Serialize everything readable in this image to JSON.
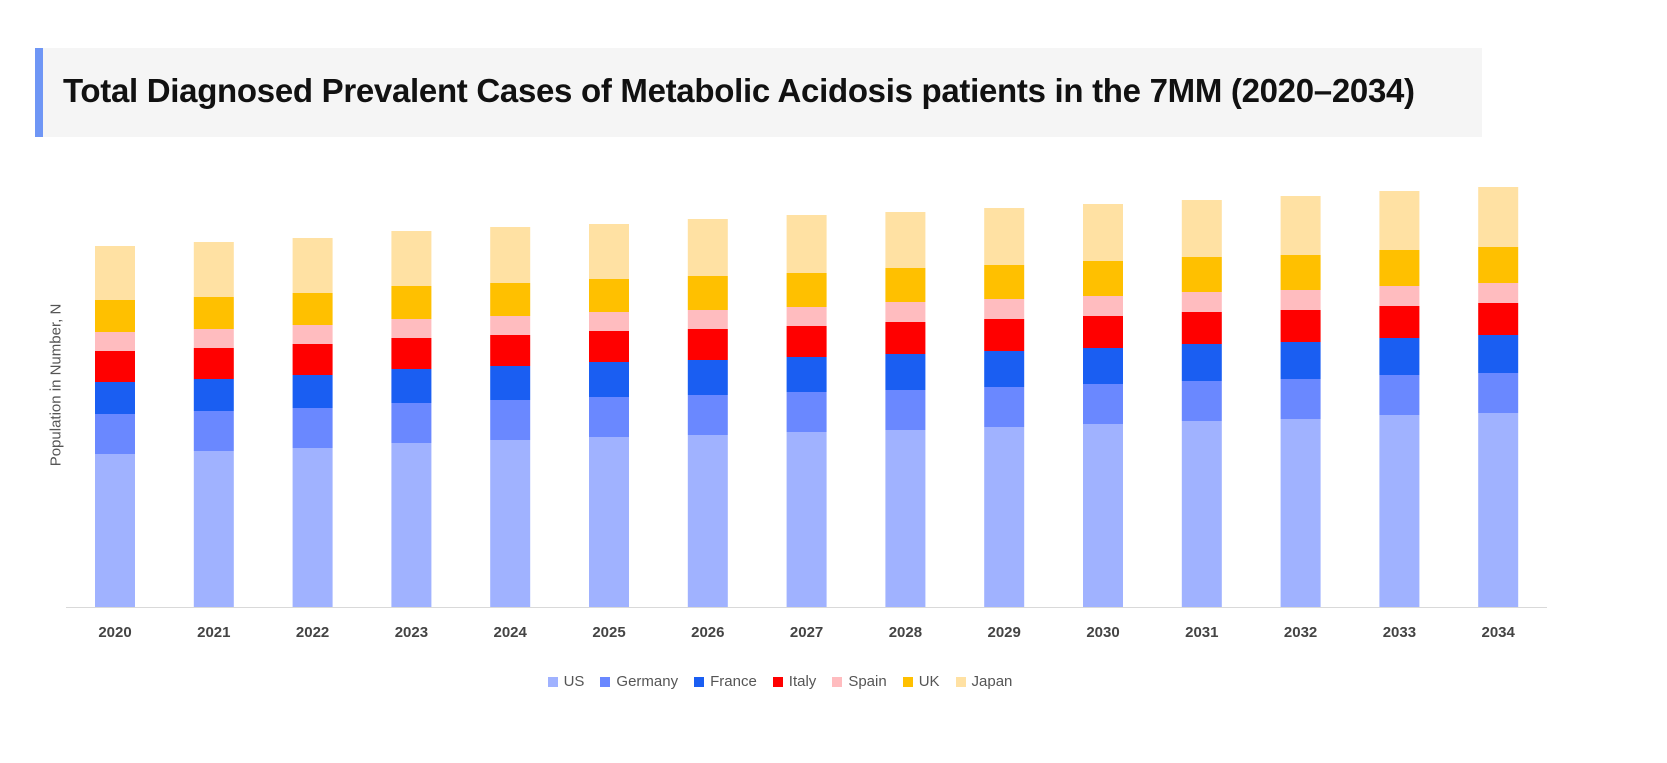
{
  "title": "Total Diagnosed Prevalent Cases of Metabolic Acidosis patients in the 7MM (2020–2034)",
  "chart_data": {
    "type": "bar",
    "stacked": true,
    "title": "Total Diagnosed Prevalent Cases of Metabolic Acidosis patients in the 7MM (2020–2034)",
    "xlabel": "",
    "ylabel": "Population in Number, N",
    "y_ticks_shown": false,
    "grid": false,
    "legend_position": "bottom",
    "categories": [
      "2020",
      "2021",
      "2022",
      "2023",
      "2024",
      "2025",
      "2026",
      "2027",
      "2028",
      "2029",
      "2030",
      "2031",
      "2032",
      "2033",
      "2034"
    ],
    "ylim": [
      0,
      440
    ],
    "series": [
      {
        "name": "US",
        "color": "#a0b2ff",
        "values": [
          153,
          156,
          159,
          164,
          167,
          170,
          172,
          175,
          177,
          180,
          183,
          186,
          188,
          192,
          194
        ]
      },
      {
        "name": "Germany",
        "color": "#6a88ff",
        "values": [
          40,
          40,
          40,
          40,
          40,
          40,
          40,
          40,
          40,
          40,
          40,
          40,
          40,
          40,
          40
        ]
      },
      {
        "name": "France",
        "color": "#1a5ef2",
        "values": [
          32,
          32,
          33,
          34,
          34,
          35,
          35,
          35,
          36,
          36,
          36,
          37,
          37,
          37,
          38
        ]
      },
      {
        "name": "Italy",
        "color": "#ff0000",
        "values": [
          31,
          31,
          31,
          31,
          31,
          31,
          31,
          31,
          32,
          32,
          32,
          32,
          32,
          32,
          32
        ]
      },
      {
        "name": "Spain",
        "color": "#ffbcbf",
        "values": [
          19,
          19,
          19,
          19,
          19,
          19,
          19,
          19,
          20,
          20,
          20,
          20,
          20,
          20,
          20
        ]
      },
      {
        "name": "UK",
        "color": "#ffc000",
        "values": [
          32,
          32,
          32,
          33,
          33,
          33,
          34,
          34,
          34,
          34,
          35,
          35,
          35,
          36,
          36
        ]
      },
      {
        "name": "Japan",
        "color": "#ffe1a3",
        "values": [
          54,
          55,
          55,
          55,
          56,
          55,
          57,
          58,
          56,
          57,
          57,
          57,
          59,
          59,
          60
        ]
      }
    ]
  }
}
